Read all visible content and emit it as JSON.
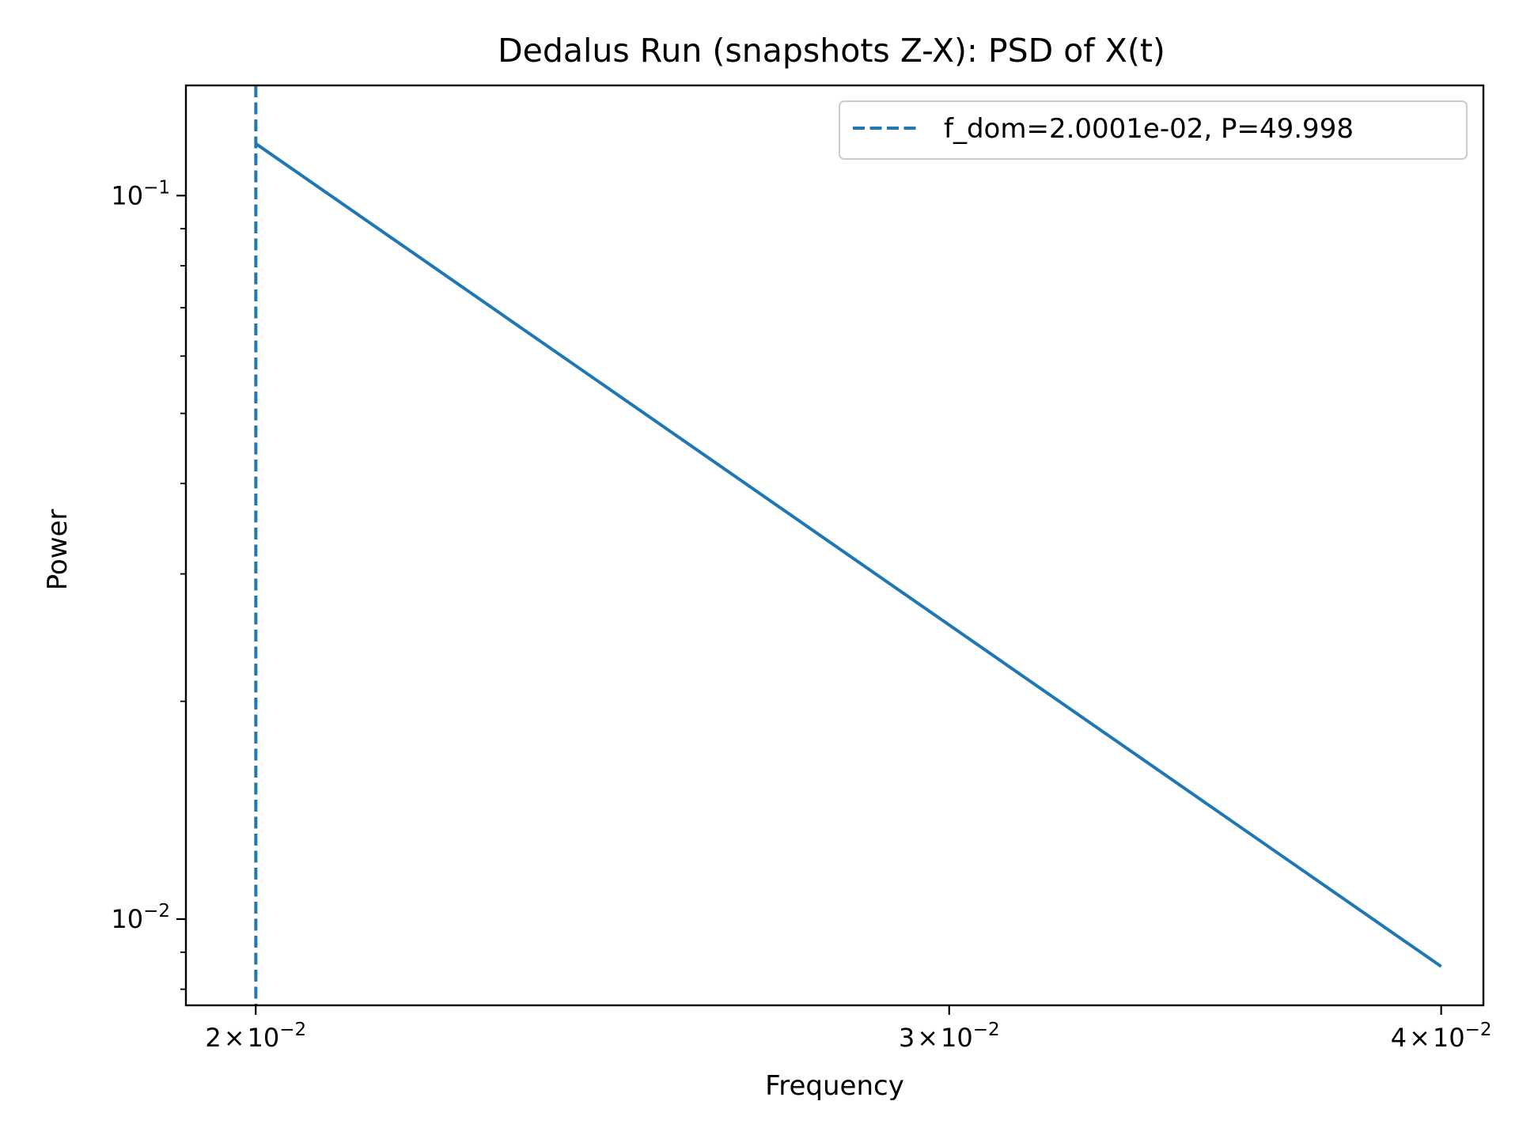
{
  "chart_data": {
    "type": "line",
    "title": "Dedalus Run (snapshots Z-X): PSD of X(t)",
    "xlabel": "Frequency",
    "ylabel": "Power",
    "xscale": "log",
    "yscale": "log",
    "xlim": [
      0.0192,
      0.041
    ],
    "ylim": [
      0.0076,
      0.142
    ],
    "xticks": [
      {
        "value": 0.02,
        "mantissa": "2",
        "times": "×",
        "base": "10",
        "exp": "−2"
      },
      {
        "value": 0.03,
        "mantissa": "3",
        "times": "×",
        "base": "10",
        "exp": "−2"
      },
      {
        "value": 0.04,
        "mantissa": "4",
        "times": "×",
        "base": "10",
        "exp": "−2"
      }
    ],
    "yticks": [
      {
        "value": 0.1,
        "base": "10",
        "exp": "−1"
      },
      {
        "value": 0.01,
        "base": "10",
        "exp": "−2"
      }
    ],
    "y_minor_ticks": [
      0.008,
      0.009,
      0.02,
      0.03,
      0.04,
      0.05,
      0.06,
      0.07,
      0.08,
      0.09
    ],
    "grid": false,
    "legend_position": "upper right",
    "series": [
      {
        "values_xy": [
          [
            0.02,
            0.118
          ],
          [
            0.04,
            0.0086
          ]
        ],
        "color": "#1f77b4",
        "style": "solid"
      }
    ],
    "vlines": [
      {
        "x": 0.020001,
        "label": "f_dom=2.0001e-02, P=49.998",
        "color": "#1f77b4",
        "style": "dashed"
      }
    ]
  }
}
